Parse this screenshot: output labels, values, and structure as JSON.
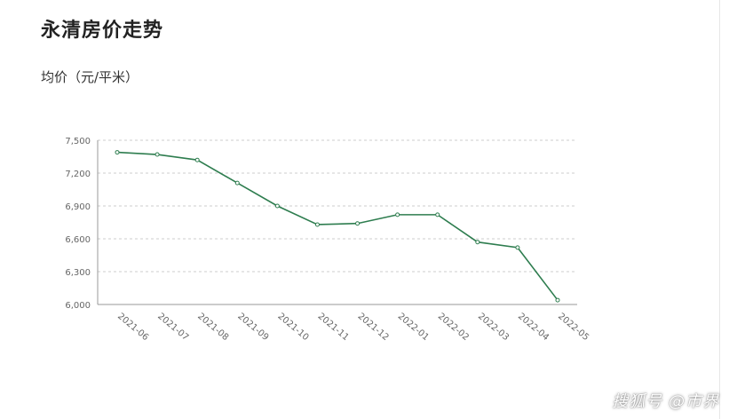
{
  "header": {
    "title": "永清房价走势",
    "unit_label": "均价（元/平米）"
  },
  "watermark": "搜狐号 @市界",
  "colors": {
    "line": "#2e7d4f",
    "grid": "#cccccc",
    "axis": "#999999"
  },
  "chart_data": {
    "type": "line",
    "title": "永清房价走势",
    "ylabel": "均价（元/平米）",
    "xlabel": "",
    "categories": [
      "2021-06",
      "2021-07",
      "2021-08",
      "2021-09",
      "2021-10",
      "2021-11",
      "2021-12",
      "2022-01",
      "2022-02",
      "2022-03",
      "2022-04",
      "2022-05"
    ],
    "y_tick_labels": [
      "6,000",
      "6,300",
      "6,600",
      "6,900",
      "7,200",
      "7,500"
    ],
    "ylim": [
      6000,
      7500
    ],
    "grid": true,
    "series": [
      {
        "values": [
          7390,
          7370,
          7320,
          7110,
          6900,
          6730,
          6740,
          6820,
          6820,
          6570,
          6520,
          6040
        ]
      }
    ]
  }
}
